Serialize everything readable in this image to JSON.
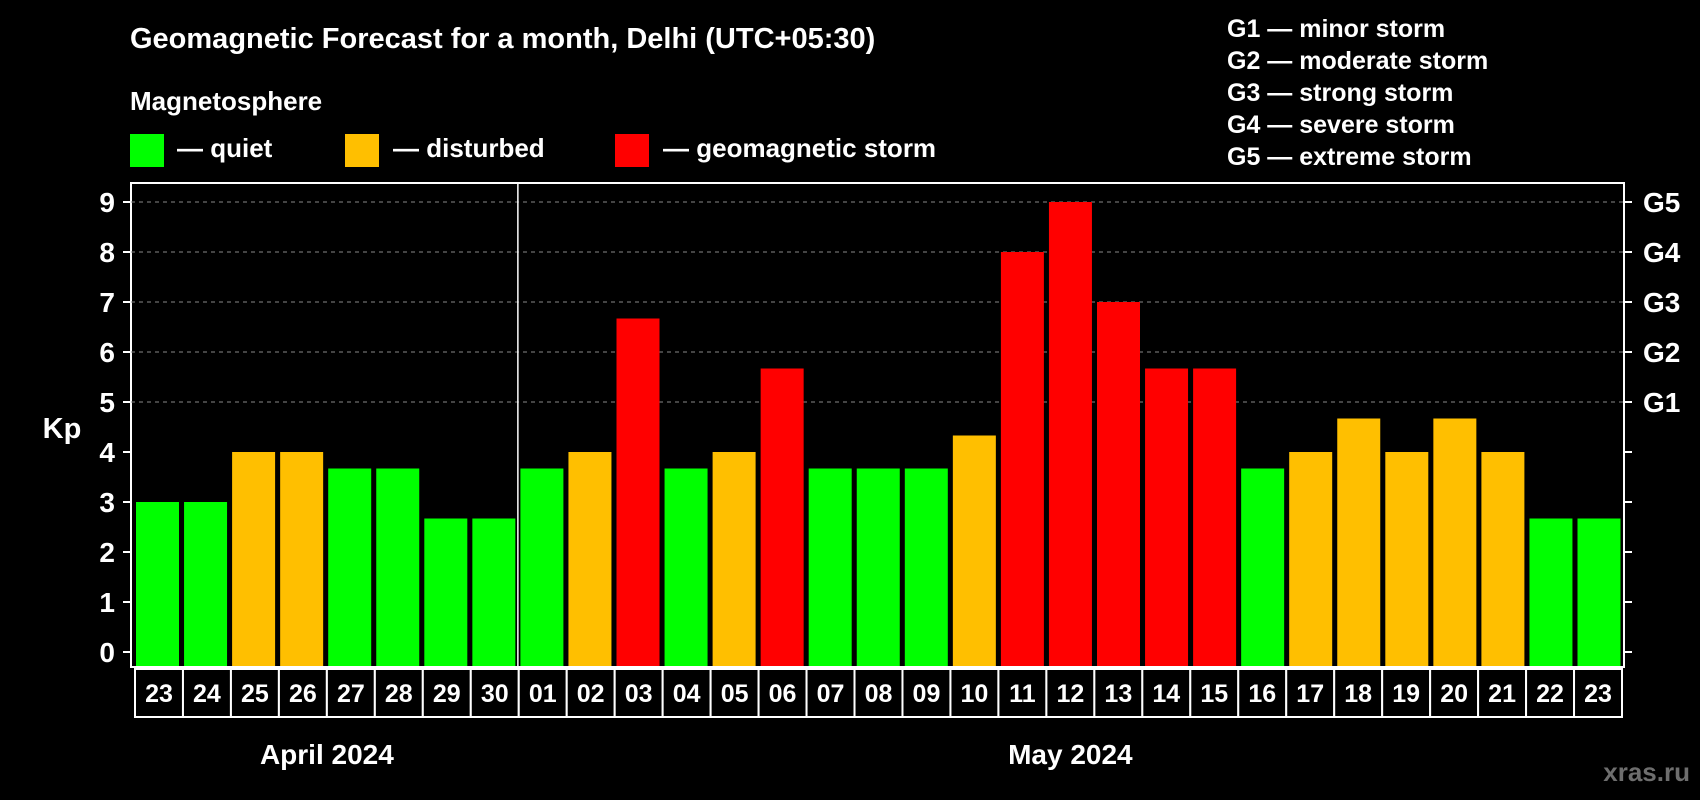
{
  "chart_data": {
    "type": "bar",
    "title": "Geomagnetic Forecast for a month, Delhi (UTC+05:30)",
    "ylabel": "Kp",
    "ylim": [
      0,
      9
    ],
    "yticks": [
      "0",
      "1",
      "2",
      "3",
      "4",
      "5",
      "6",
      "7",
      "8",
      "9"
    ],
    "categories": [
      "23",
      "24",
      "25",
      "26",
      "27",
      "28",
      "29",
      "30",
      "01",
      "02",
      "03",
      "04",
      "05",
      "06",
      "07",
      "08",
      "09",
      "10",
      "11",
      "12",
      "13",
      "14",
      "15",
      "16",
      "17",
      "18",
      "19",
      "20",
      "21",
      "22",
      "23"
    ],
    "values": [
      3,
      3,
      4,
      4,
      3.67,
      3.67,
      2.67,
      2.67,
      3.67,
      4,
      6.67,
      3.67,
      4,
      5.67,
      3.67,
      3.67,
      3.67,
      4.33,
      8,
      9,
      7,
      5.67,
      5.67,
      3.67,
      4,
      4.67,
      4,
      4.67,
      4,
      2.67,
      2.67
    ],
    "levels": [
      "quiet",
      "quiet",
      "disturbed",
      "disturbed",
      "quiet",
      "quiet",
      "quiet",
      "quiet",
      "quiet",
      "disturbed",
      "storm",
      "quiet",
      "disturbed",
      "storm",
      "quiet",
      "quiet",
      "quiet",
      "disturbed",
      "storm",
      "storm",
      "storm",
      "storm",
      "storm",
      "quiet",
      "disturbed",
      "disturbed",
      "disturbed",
      "disturbed",
      "disturbed",
      "quiet",
      "quiet"
    ],
    "colors": {
      "quiet": "#00ff00",
      "disturbed": "#ffbf00",
      "storm": "#ff0000"
    },
    "months": [
      {
        "label": "April 2024",
        "first_index": 0,
        "last_index": 7
      },
      {
        "label": "May 2024",
        "first_index": 8,
        "last_index": 30
      }
    ],
    "month_divider_after_index": 7,
    "grid": "dashed, Kp 5 to 9",
    "right_axis": [
      {
        "kp": 5,
        "label": "G1"
      },
      {
        "kp": 6,
        "label": "G2"
      },
      {
        "kp": 7,
        "label": "G3"
      },
      {
        "kp": 8,
        "label": "G4"
      },
      {
        "kp": 9,
        "label": "G5"
      }
    ]
  },
  "legend": {
    "heading": "Magnetosphere",
    "items": [
      {
        "label": "— quiet",
        "color": "#00ff00"
      },
      {
        "label": "— disturbed",
        "color": "#ffbf00"
      },
      {
        "label": "— geomagnetic storm",
        "color": "#ff0000"
      }
    ]
  },
  "storm_scale": [
    "G1 — minor storm",
    "G2 — moderate storm",
    "G3 — strong storm",
    "G4 — severe storm",
    "G5 — extreme storm"
  ],
  "watermark": "xras.ru"
}
